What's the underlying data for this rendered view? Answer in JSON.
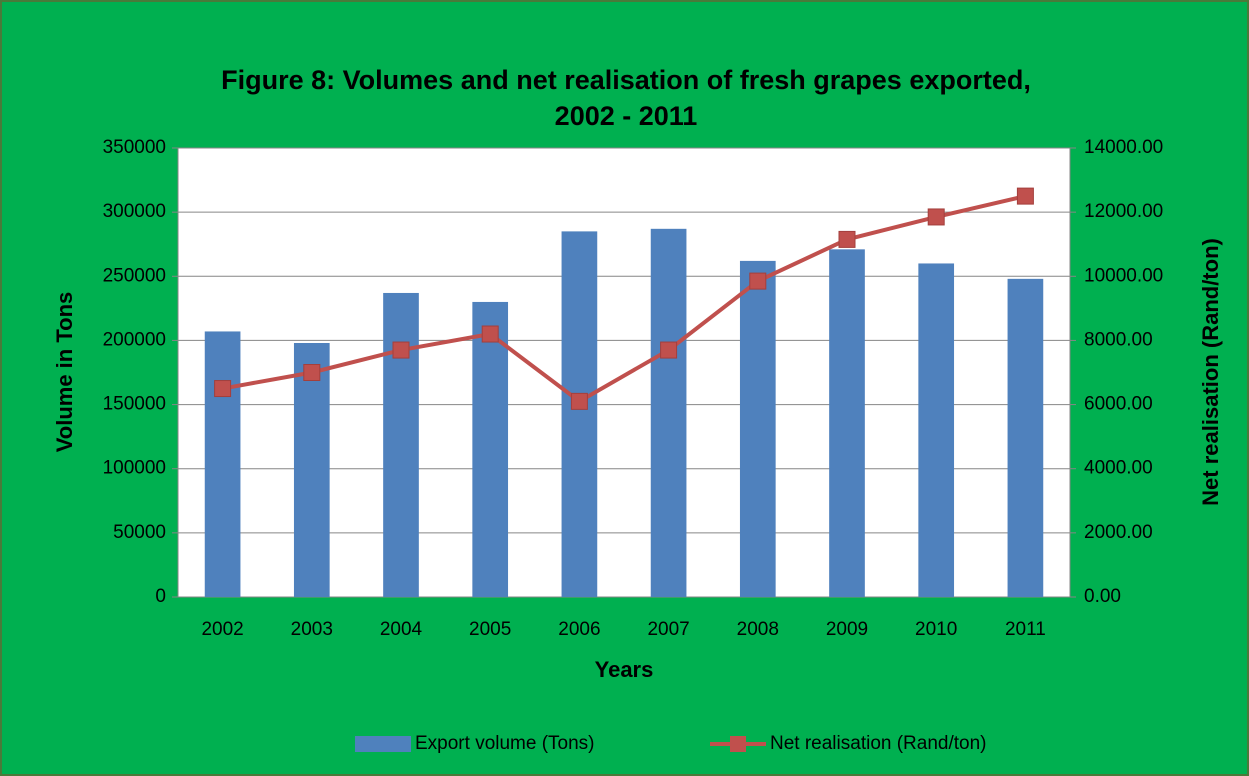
{
  "chart_data": {
    "type": "bar_line",
    "title": [
      "Figure 8: Volumes and net realisation of fresh grapes exported,",
      "2002 - 2011"
    ],
    "x_label": "Years",
    "y_label": "Volume in Tons",
    "y2_label": "Net realisation (Rand/ton)",
    "categories": [
      "2002",
      "2003",
      "2004",
      "2005",
      "2006",
      "2007",
      "2008",
      "2009",
      "2010",
      "2011"
    ],
    "series": [
      {
        "name": "Export volume (Tons)",
        "type": "bar",
        "color": "#4f81bd",
        "values": [
          207000,
          198000,
          237000,
          230000,
          285000,
          287000,
          262000,
          271000,
          260000,
          248000
        ]
      },
      {
        "name": "Net realisation (Rand/ton)",
        "type": "line",
        "axis": "y2",
        "color": "#c0504d",
        "values": [
          6500,
          7000,
          7700,
          8200,
          6100,
          7700,
          9850,
          11150,
          11850,
          12500
        ]
      }
    ],
    "ylim": [
      0,
      350000
    ],
    "yticks": [
      0,
      50000,
      100000,
      150000,
      200000,
      250000,
      300000,
      350000
    ],
    "y2lim": [
      0,
      14000
    ],
    "y2ticks": [
      {
        "value": 0,
        "label": "0.00"
      },
      {
        "value": 2000,
        "label": "2000.00"
      },
      {
        "value": 4000,
        "label": "4000.00"
      },
      {
        "value": 6000,
        "label": "6000.00"
      },
      {
        "value": 8000,
        "label": "8000.00"
      },
      {
        "value": 10000,
        "label": "10000.00"
      },
      {
        "value": 12000,
        "label": "12000.00"
      },
      {
        "value": 14000,
        "label": "14000.00"
      }
    ],
    "grid": true,
    "legend": "bottom"
  }
}
